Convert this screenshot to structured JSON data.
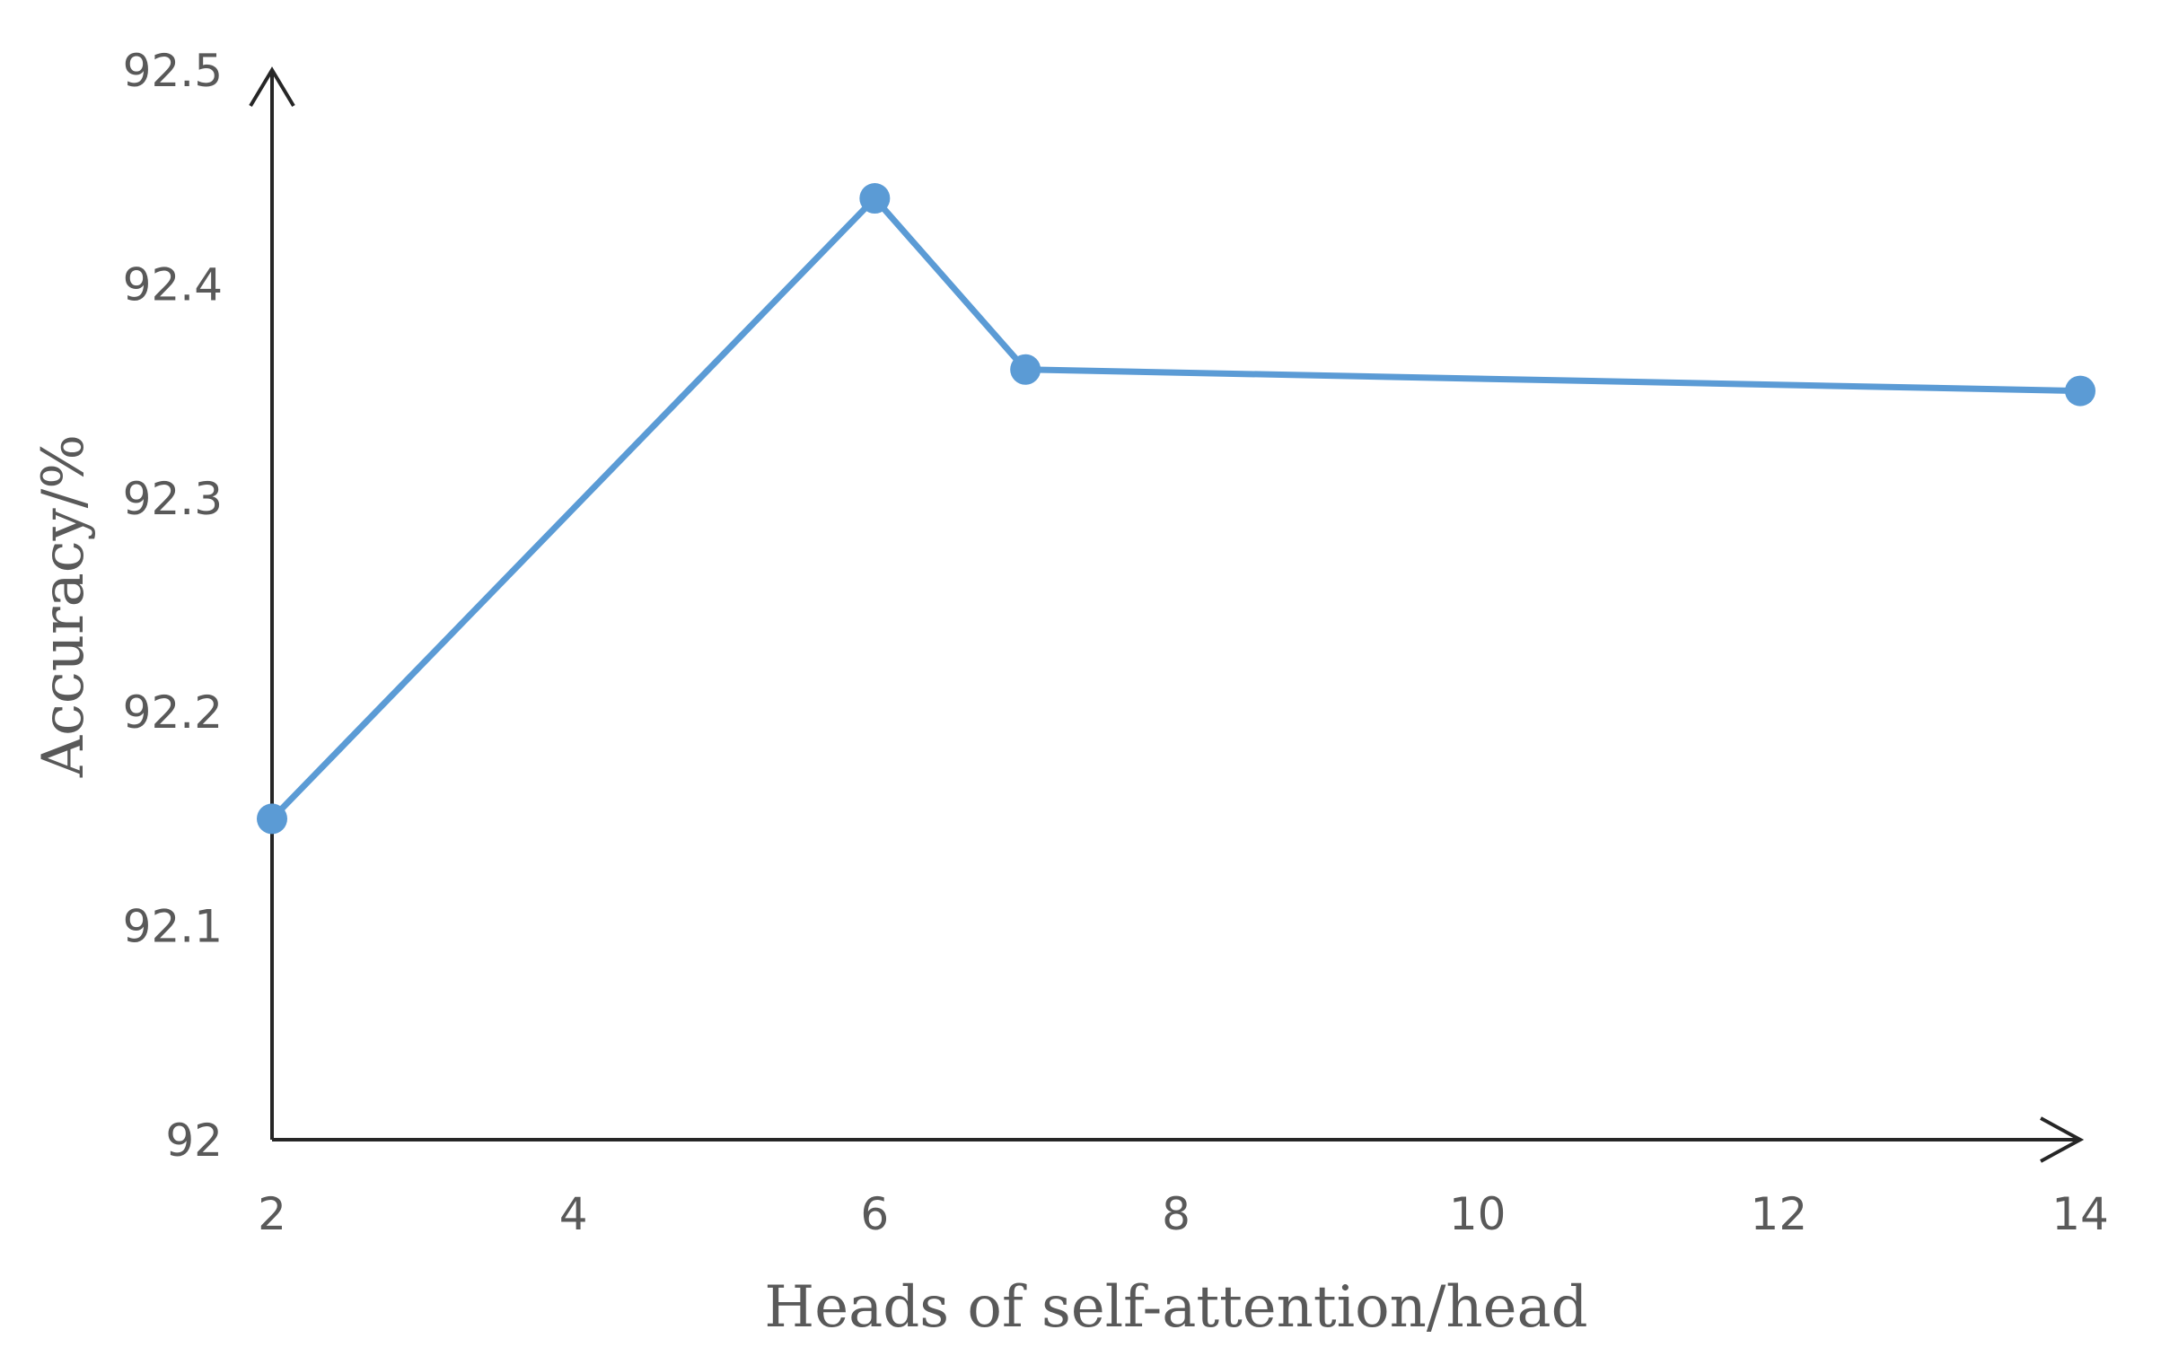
{
  "chart_data": {
    "type": "line",
    "title": "",
    "xlabel": "Heads of self-attention/head",
    "ylabel": "Accuracy/%",
    "xlim": [
      2,
      14
    ],
    "ylim": [
      92,
      92.5
    ],
    "x_ticks": [
      2,
      4,
      6,
      8,
      10,
      12,
      14
    ],
    "y_ticks": [
      92,
      92.1,
      92.2,
      92.3,
      92.4,
      92.5
    ],
    "x_tick_labels": [
      "2",
      "4",
      "6",
      "8",
      "10",
      "12",
      "14"
    ],
    "y_tick_labels": [
      "92",
      "92.1",
      "92.2",
      "92.3",
      "92.4",
      "92.5"
    ],
    "grid": false,
    "legend": "none",
    "series": [
      {
        "color": "#5b9bd5",
        "marker": "circle",
        "x": [
          2,
          6,
          7,
          14
        ],
        "y": [
          92.15,
          92.44,
          92.36,
          92.35
        ]
      }
    ]
  }
}
